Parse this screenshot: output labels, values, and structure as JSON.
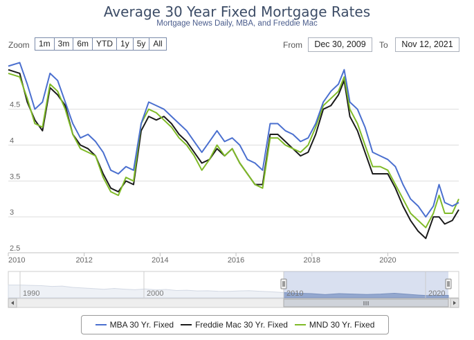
{
  "title": "Average 30 Year Fixed Mortgage Rates",
  "subtitle": "Mortgage News Daily, MBA, and Freddie Mac",
  "zoom": {
    "label": "Zoom",
    "buttons": [
      "1m",
      "3m",
      "6m",
      "YTD",
      "1y",
      "5y",
      "All"
    ]
  },
  "range": {
    "from_label": "From",
    "from_value": "Dec 30, 2009",
    "to_label": "To",
    "to_value": "Nov 12, 2021"
  },
  "navigator": {
    "ticks": [
      "1990",
      "2000",
      "2010",
      "2020"
    ]
  },
  "colors": {
    "mba": "#4a6fcf",
    "freddie": "#1a1a1a",
    "mnd": "#7fba27",
    "grid": "#dddddd",
    "nav_fill": "#a3b4d3"
  },
  "chart_data": {
    "type": "line",
    "title": "Average 30 Year Fixed Mortgage Rates",
    "subtitle": "Mortgage News Daily, MBA, and Freddie Mac",
    "x_ticks": [
      "2010",
      "2012",
      "2014",
      "2016",
      "2018",
      "2020"
    ],
    "y_ticks": [
      "2.5",
      "3",
      "3.5",
      "4",
      "4.5"
    ],
    "xlim": [
      2010.0,
      2021.87
    ],
    "ylim": [
      2.5,
      5.25
    ],
    "grid": true,
    "legend_position": "bottom",
    "series": [
      {
        "name": "MBA 30 Yr. Fixed",
        "x": [
          2010.0,
          2010.3,
          2010.5,
          2010.7,
          2010.9,
          2011.1,
          2011.3,
          2011.5,
          2011.7,
          2011.9,
          2012.1,
          2012.3,
          2012.5,
          2012.7,
          2012.9,
          2013.1,
          2013.3,
          2013.5,
          2013.7,
          2013.9,
          2014.1,
          2014.3,
          2014.5,
          2014.7,
          2014.9,
          2015.1,
          2015.3,
          2015.5,
          2015.7,
          2015.9,
          2016.1,
          2016.3,
          2016.5,
          2016.7,
          2016.9,
          2017.1,
          2017.3,
          2017.5,
          2017.7,
          2017.9,
          2018.1,
          2018.3,
          2018.5,
          2018.7,
          2018.85,
          2019.0,
          2019.2,
          2019.4,
          2019.6,
          2019.8,
          2020.0,
          2020.2,
          2020.4,
          2020.6,
          2020.8,
          2021.0,
          2021.2,
          2021.35,
          2021.5,
          2021.7,
          2021.87
        ],
        "y": [
          5.1,
          5.15,
          4.85,
          4.5,
          4.6,
          5.0,
          4.9,
          4.6,
          4.3,
          4.1,
          4.15,
          4.05,
          3.9,
          3.65,
          3.6,
          3.7,
          3.65,
          4.3,
          4.6,
          4.55,
          4.5,
          4.4,
          4.3,
          4.2,
          4.05,
          3.9,
          4.05,
          4.2,
          4.05,
          4.1,
          4.0,
          3.8,
          3.75,
          3.65,
          4.3,
          4.3,
          4.2,
          4.15,
          4.05,
          4.1,
          4.3,
          4.6,
          4.75,
          4.85,
          5.05,
          4.6,
          4.5,
          4.25,
          3.9,
          3.85,
          3.8,
          3.7,
          3.45,
          3.25,
          3.15,
          3.0,
          3.15,
          3.45,
          3.2,
          3.15,
          3.2
        ]
      },
      {
        "name": "Freddie Mac 30 Yr. Fixed",
        "x": [
          2010.0,
          2010.3,
          2010.5,
          2010.7,
          2010.9,
          2011.1,
          2011.3,
          2011.5,
          2011.7,
          2011.9,
          2012.1,
          2012.3,
          2012.5,
          2012.7,
          2012.9,
          2013.1,
          2013.3,
          2013.5,
          2013.7,
          2013.9,
          2014.1,
          2014.3,
          2014.5,
          2014.7,
          2014.9,
          2015.1,
          2015.3,
          2015.5,
          2015.7,
          2015.9,
          2016.1,
          2016.3,
          2016.5,
          2016.7,
          2016.9,
          2017.1,
          2017.3,
          2017.5,
          2017.7,
          2017.9,
          2018.1,
          2018.3,
          2018.5,
          2018.7,
          2018.85,
          2019.0,
          2019.2,
          2019.4,
          2019.6,
          2019.8,
          2020.0,
          2020.2,
          2020.4,
          2020.6,
          2020.8,
          2021.0,
          2021.2,
          2021.35,
          2021.5,
          2021.7,
          2021.87
        ],
        "y": [
          5.05,
          5.0,
          4.6,
          4.35,
          4.2,
          4.8,
          4.7,
          4.55,
          4.15,
          4.0,
          3.95,
          3.85,
          3.6,
          3.4,
          3.35,
          3.5,
          3.45,
          4.2,
          4.4,
          4.35,
          4.4,
          4.3,
          4.15,
          4.05,
          3.9,
          3.75,
          3.8,
          3.95,
          3.85,
          3.95,
          3.75,
          3.6,
          3.45,
          3.45,
          4.15,
          4.15,
          4.05,
          3.95,
          3.85,
          3.9,
          4.15,
          4.5,
          4.55,
          4.7,
          4.9,
          4.4,
          4.2,
          3.9,
          3.6,
          3.6,
          3.6,
          3.4,
          3.15,
          2.95,
          2.8,
          2.7,
          3.0,
          3.0,
          2.9,
          2.95,
          3.1
        ]
      },
      {
        "name": "MND 30 Yr. Fixed",
        "x": [
          2010.0,
          2010.3,
          2010.5,
          2010.7,
          2010.9,
          2011.1,
          2011.3,
          2011.5,
          2011.7,
          2011.9,
          2012.1,
          2012.3,
          2012.5,
          2012.7,
          2012.9,
          2013.1,
          2013.3,
          2013.5,
          2013.7,
          2013.9,
          2014.1,
          2014.3,
          2014.5,
          2014.7,
          2014.9,
          2015.1,
          2015.3,
          2015.5,
          2015.7,
          2015.9,
          2016.1,
          2016.3,
          2016.5,
          2016.7,
          2016.9,
          2017.1,
          2017.3,
          2017.5,
          2017.7,
          2017.9,
          2018.1,
          2018.3,
          2018.5,
          2018.7,
          2018.85,
          2019.0,
          2019.2,
          2019.4,
          2019.6,
          2019.8,
          2020.0,
          2020.2,
          2020.4,
          2020.6,
          2020.8,
          2021.0,
          2021.2,
          2021.35,
          2021.5,
          2021.7,
          2021.87
        ],
        "y": [
          5.0,
          4.95,
          4.65,
          4.3,
          4.25,
          4.85,
          4.75,
          4.5,
          4.15,
          3.95,
          3.9,
          3.85,
          3.55,
          3.35,
          3.3,
          3.55,
          3.5,
          4.3,
          4.5,
          4.45,
          4.35,
          4.25,
          4.1,
          4.0,
          3.85,
          3.65,
          3.8,
          4.0,
          3.85,
          3.95,
          3.75,
          3.6,
          3.45,
          3.4,
          4.1,
          4.1,
          4.0,
          3.95,
          3.9,
          4.0,
          4.25,
          4.55,
          4.65,
          4.75,
          4.95,
          4.5,
          4.3,
          4.0,
          3.7,
          3.7,
          3.65,
          3.45,
          3.25,
          3.05,
          2.95,
          2.85,
          3.05,
          3.3,
          3.05,
          3.05,
          3.25
        ]
      }
    ]
  }
}
